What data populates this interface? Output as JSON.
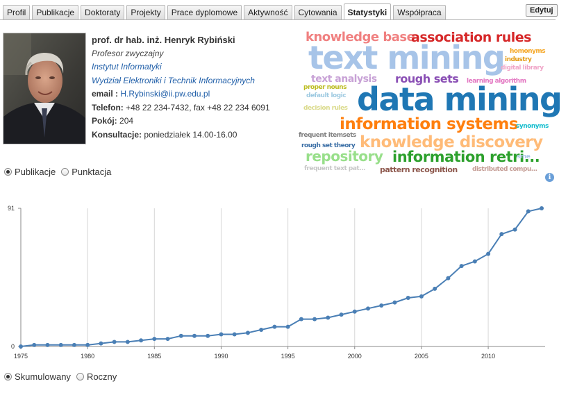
{
  "tabs": [
    {
      "label": "Profil",
      "active": false
    },
    {
      "label": "Publikacje",
      "active": false
    },
    {
      "label": "Doktoraty",
      "active": false
    },
    {
      "label": "Projekty",
      "active": false
    },
    {
      "label": "Prace dyplomowe",
      "active": false
    },
    {
      "label": "Aktywność",
      "active": false
    },
    {
      "label": "Cytowania",
      "active": false
    },
    {
      "label": "Statystyki",
      "active": true
    },
    {
      "label": "Współpraca",
      "active": false
    }
  ],
  "edit_label": "Edytuj",
  "profile": {
    "name": "prof. dr hab. inż. Henryk Rybiński",
    "position": "Profesor zwyczajny",
    "institute": "Instytut Informatyki",
    "faculty": "Wydział Elektroniki i Technik Informacyjnych",
    "email_label": "email :",
    "email": "H.Rybinski@ii.pw.edu.pl",
    "phone_label": "Telefon:",
    "phone": "+48 22 234-7432, fax +48 22 234 6091",
    "room_label": "Pokój:",
    "room": "204",
    "consult_label": "Konsultacje:",
    "consult": "poniedziałek 14.00-16.00"
  },
  "cloud": [
    {
      "text": "knowledge base",
      "color": "#f08080"
    },
    {
      "text": "association rules",
      "color": "#d62728"
    },
    {
      "text": "homonyms",
      "color": "#f5a623"
    },
    {
      "text": "text mining",
      "color": "#a7c4e8"
    },
    {
      "text": "industry",
      "color": "#e39a12"
    },
    {
      "text": "digital library",
      "color": "#f0a6c8"
    },
    {
      "text": "text analysis",
      "color": "#c8a2d6"
    },
    {
      "text": "rough sets",
      "color": "#8a4fb5"
    },
    {
      "text": "learning algorithm",
      "color": "#e377c2"
    },
    {
      "text": "proper nouns",
      "color": "#bcbd22"
    },
    {
      "text": "default logic",
      "color": "#9ecae1"
    },
    {
      "text": "data mining",
      "color": "#1f77b4"
    },
    {
      "text": "decision rules",
      "color": "#dbdb8d"
    },
    {
      "text": "information systems",
      "color": "#ff7f0e"
    },
    {
      "text": "synonyms",
      "color": "#17becf"
    },
    {
      "text": "frequent itemsets",
      "color": "#7f7f7f"
    },
    {
      "text": "knowledge discovery",
      "color": "#ffbb78"
    },
    {
      "text": "rough set theory",
      "color": "#3a6ea5"
    },
    {
      "text": "repository",
      "color": "#98df8a"
    },
    {
      "text": "information retri...",
      "color": "#2ca02c"
    },
    {
      "text": "sme",
      "color": "#aec7e8"
    },
    {
      "text": "frequent text pat...",
      "color": "#c7c7c7"
    },
    {
      "text": "pattern recognition",
      "color": "#8c564b"
    },
    {
      "text": "distributed compu...",
      "color": "#c49c94"
    }
  ],
  "top_radios": [
    {
      "label": "Publikacje",
      "checked": true
    },
    {
      "label": "Punktacja",
      "checked": false
    }
  ],
  "bottom_radios": [
    {
      "label": "Skumulowany",
      "checked": true
    },
    {
      "label": "Roczny",
      "checked": false
    }
  ],
  "chart_data": {
    "type": "line",
    "title": "",
    "xlabel": "",
    "ylabel": "",
    "x": [
      1975,
      1976,
      1977,
      1978,
      1979,
      1980,
      1981,
      1982,
      1983,
      1984,
      1985,
      1986,
      1987,
      1988,
      1989,
      1990,
      1991,
      1992,
      1993,
      1994,
      1995,
      1996,
      1997,
      1998,
      1999,
      2000,
      2001,
      2002,
      2003,
      2004,
      2005,
      2006,
      2007,
      2008,
      2009,
      2010,
      2011,
      2012,
      2013,
      2014
    ],
    "series": [
      {
        "values": [
          0,
          1,
          1,
          1,
          1,
          1,
          2,
          3,
          3,
          4,
          5,
          5,
          7,
          7,
          7,
          8,
          8,
          9,
          11,
          13,
          13,
          18,
          18,
          19,
          21,
          23,
          25,
          27,
          29,
          32,
          33,
          38,
          45,
          53,
          56,
          61,
          74,
          77,
          89,
          91
        ],
        "color": "#4a7fb5"
      }
    ],
    "xlim": [
      1975,
      2014
    ],
    "ylim": [
      0,
      91
    ],
    "xticks": [
      "1975",
      "1980",
      "1985",
      "1990",
      "1995",
      "2000",
      "2005",
      "2010"
    ],
    "yticks": [
      "0",
      "91"
    ],
    "grid": "vertical"
  }
}
